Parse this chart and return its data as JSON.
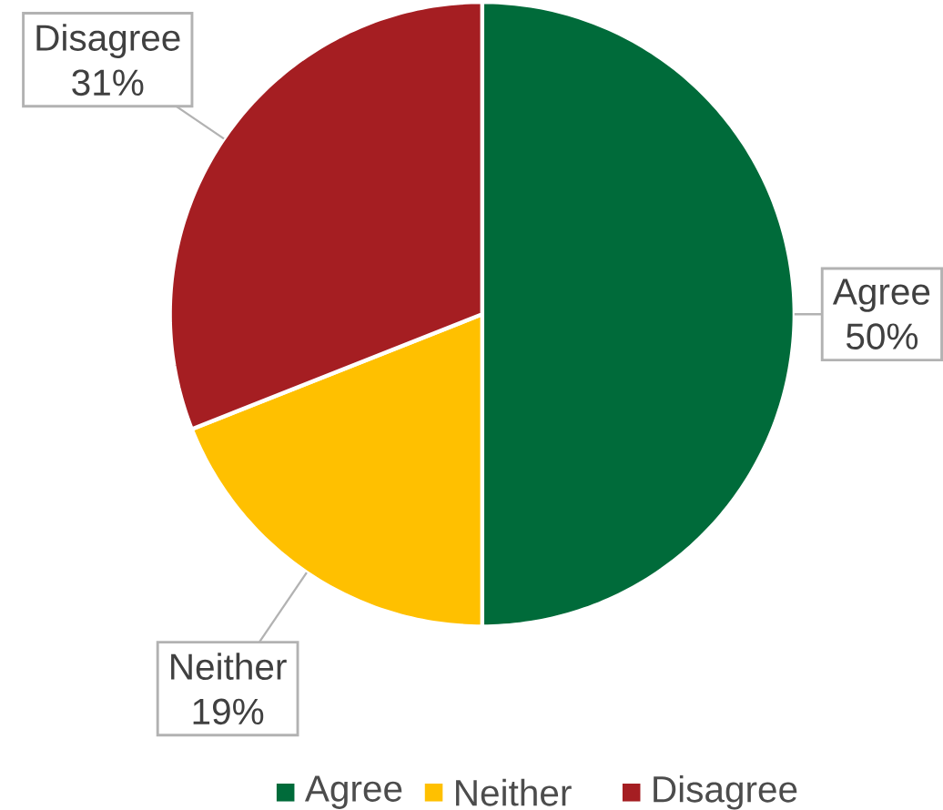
{
  "chart_data": {
    "type": "pie",
    "categories": [
      "Agree",
      "Neither",
      "Disagree"
    ],
    "values": [
      50,
      19,
      31
    ],
    "value_labels": [
      "50%",
      "19%",
      "31%"
    ],
    "colors": [
      "#006b3a",
      "#ffc000",
      "#a51e22"
    ],
    "legend": "bottom"
  }
}
